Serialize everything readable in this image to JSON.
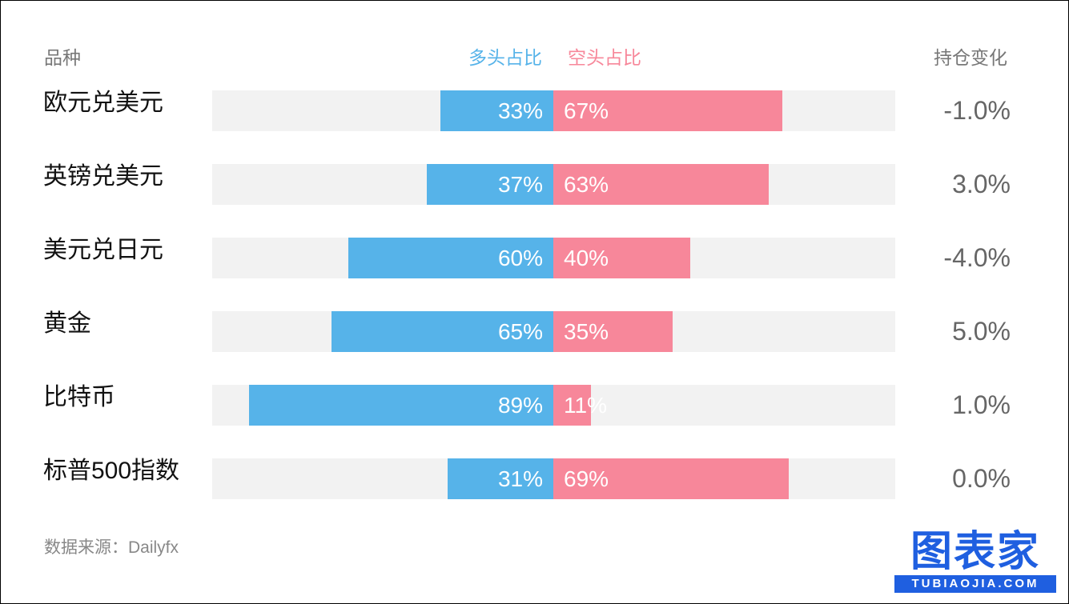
{
  "headers": {
    "name": "品种",
    "long": "多头占比",
    "short": "空头占比",
    "change": "持仓变化"
  },
  "colors": {
    "long": "#56b3e9",
    "short": "#f7879a",
    "track": "#f2f2f2"
  },
  "chart_data": {
    "type": "bar",
    "stacked": true,
    "orientation": "horizontal",
    "categories": [
      "欧元兑美元",
      "英镑兑美元",
      "美元兑日元",
      "黄金",
      "比特币",
      "标普500指数"
    ],
    "series": [
      {
        "name": "多头占比",
        "values": [
          33,
          37,
          60,
          65,
          89,
          31
        ]
      },
      {
        "name": "空头占比",
        "values": [
          67,
          63,
          40,
          35,
          11,
          69
        ]
      }
    ],
    "long_labels": [
      "33%",
      "37%",
      "60%",
      "65%",
      "89%",
      "31%"
    ],
    "short_labels": [
      "67%",
      "63%",
      "40%",
      "35%",
      "11%",
      "69%"
    ],
    "changes": [
      "-1.0%",
      "3.0%",
      "-4.0%",
      "5.0%",
      "1.0%",
      "0.0%"
    ],
    "xlim": [
      -100,
      100
    ],
    "legend": "top-center",
    "grid": false
  },
  "source": "数据来源：Dailyfx",
  "logo": {
    "main": "图表家",
    "sub": "TUBIAOJIA.COM"
  }
}
